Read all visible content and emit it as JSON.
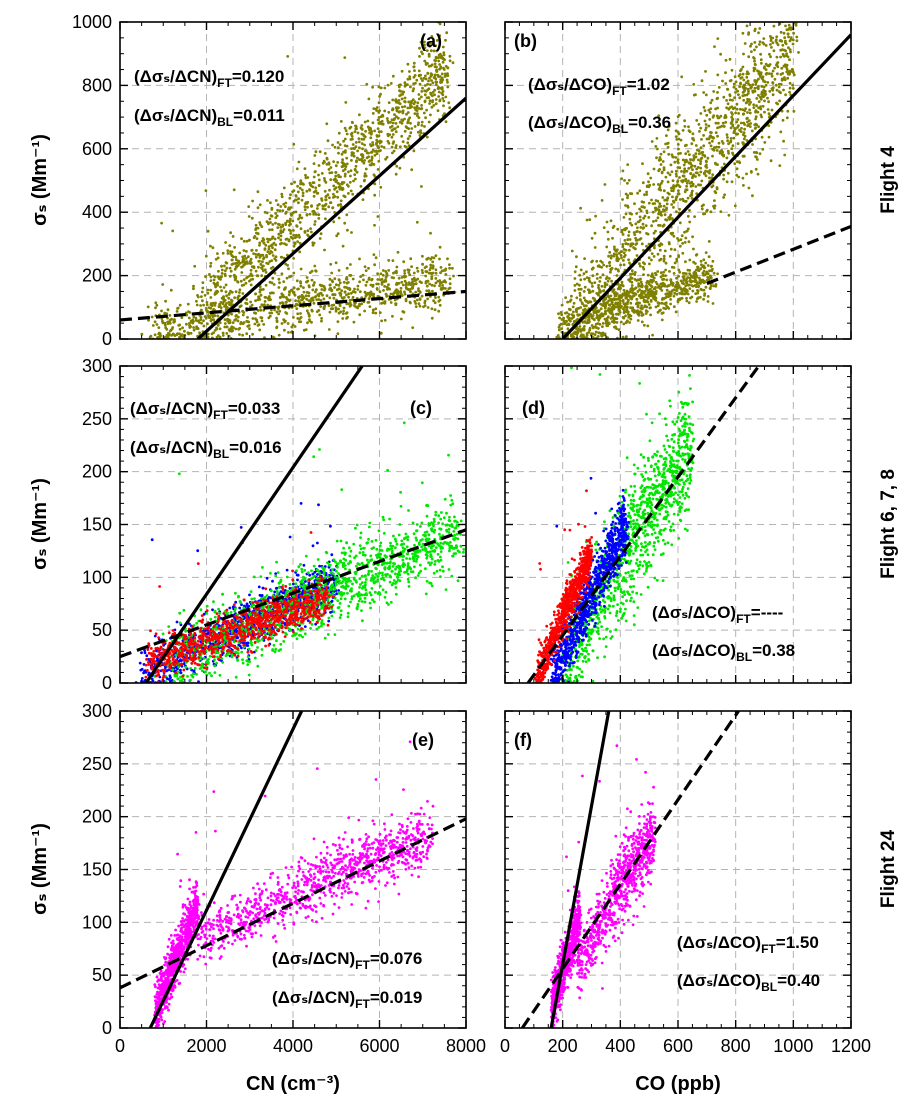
{
  "colors": {
    "flight4": "#808000",
    "flight6": "#ff0000",
    "flight7": "#0000ff",
    "flight8": "#00e600",
    "flight24": "#ff00ff",
    "fit_line": "#000000",
    "grid": "#b4b4b4"
  },
  "row_labels": [
    "Flight 4",
    "Flight 6, 7, 8",
    "Flight 24"
  ],
  "xlabels": {
    "cn": "CN (cm⁻³)",
    "co": "CO (ppb)"
  },
  "ylabel": "σₛ (Mm⁻¹)",
  "chart_data": [
    {
      "id": "a",
      "type": "scatter",
      "panel_label": "(a)",
      "xlim": [
        0,
        8000
      ],
      "ylim": [
        0,
        1000
      ],
      "grid": true,
      "xticks": [
        0,
        2000,
        4000,
        6000,
        8000
      ],
      "yticks": [
        0,
        200,
        400,
        600,
        800,
        1000
      ],
      "annotations": [
        {
          "text": "(Δσₛ/ΔCN)FT=0.120",
          "position": "top-left"
        },
        {
          "text": "(Δσₛ/ΔCN)BL=0.011",
          "position": "top-left"
        }
      ],
      "lines": [
        {
          "style": "solid",
          "slope": 0.12,
          "x": [
            1800,
            8000
          ],
          "y": [
            0,
            760
          ]
        },
        {
          "style": "dashed",
          "slope": 0.011,
          "x": [
            0,
            8000
          ],
          "y": [
            60,
            150
          ]
        }
      ],
      "series": [
        {
          "color_key": "flight4",
          "n": 2200,
          "clusters": [
            {
              "x": [
                1700,
                7600
              ],
              "y": [
                70,
                860
              ],
              "spread": 70,
              "weight": 0.55
            },
            {
              "x": [
                700,
                7600
              ],
              "y": [
                30,
                190
              ],
              "spread": 45,
              "weight": 0.45
            }
          ]
        }
      ]
    },
    {
      "id": "b",
      "type": "scatter",
      "panel_label": "(b)",
      "xlim": [
        0,
        1200
      ],
      "ylim": [
        0,
        1000
      ],
      "grid": true,
      "xticks": [
        0,
        200,
        400,
        600,
        800,
        1000,
        1200
      ],
      "yticks": [
        0,
        200,
        400,
        600,
        800,
        1000
      ],
      "annotations": [
        {
          "text": "(Δσₛ/ΔCO)FT=1.02",
          "position": "top-left"
        },
        {
          "text": "(Δσₛ/ΔCO)BL=0.36",
          "position": "top-left"
        }
      ],
      "lines": [
        {
          "style": "solid",
          "slope": 1.02,
          "x": [
            200,
            1200
          ],
          "y": [
            0,
            960
          ]
        },
        {
          "style": "dashed",
          "slope": 0.36,
          "x": [
            700,
            1200
          ],
          "y": [
            175,
            355
          ]
        }
      ],
      "series": [
        {
          "color_key": "flight4",
          "n": 2200,
          "clusters": [
            {
              "x": [
                230,
                1000
              ],
              "y": [
                40,
                920
              ],
              "spread": 110,
              "weight": 0.65
            },
            {
              "x": [
                180,
                720
              ],
              "y": [
                40,
                200
              ],
              "spread": 35,
              "weight": 0.35
            }
          ]
        }
      ]
    },
    {
      "id": "c",
      "type": "scatter",
      "panel_label": "(c)",
      "xlim": [
        0,
        8000
      ],
      "ylim": [
        0,
        300
      ],
      "grid": true,
      "xticks": [
        0,
        2000,
        4000,
        6000,
        8000
      ],
      "yticks": [
        0,
        50,
        100,
        150,
        200,
        250,
        300
      ],
      "annotations": [
        {
          "text": "(Δσₛ/ΔCN)FT=0.033",
          "position": "top-left"
        },
        {
          "text": "(Δσₛ/ΔCN)BL=0.016",
          "position": "top-left"
        }
      ],
      "lines": [
        {
          "style": "solid",
          "slope": 0.033,
          "x": [
            600,
            5600
          ],
          "y": [
            0,
            300
          ]
        },
        {
          "style": "dashed",
          "slope": 0.016,
          "x": [
            0,
            8000
          ],
          "y": [
            25,
            145
          ]
        }
      ],
      "series": [
        {
          "color_key": "flight7",
          "n": 1100,
          "clusters": [
            {
              "x": [
                500,
                5000
              ],
              "y": [
                10,
                95
              ],
              "spread": 12,
              "weight": 1
            }
          ]
        },
        {
          "color_key": "flight8",
          "n": 1400,
          "clusters": [
            {
              "x": [
                1000,
                7800
              ],
              "y": [
                20,
                140
              ],
              "spread": 17,
              "weight": 1
            }
          ]
        },
        {
          "color_key": "flight6",
          "n": 900,
          "clusters": [
            {
              "x": [
                600,
                4800
              ],
              "y": [
                20,
                80
              ],
              "spread": 10,
              "weight": 1
            }
          ]
        }
      ]
    },
    {
      "id": "d",
      "type": "scatter",
      "panel_label": "(d)",
      "xlim": [
        0,
        1200
      ],
      "ylim": [
        0,
        300
      ],
      "grid": true,
      "xticks": [
        0,
        200,
        400,
        600,
        800,
        1000,
        1200
      ],
      "yticks": [
        0,
        50,
        100,
        150,
        200,
        250,
        300
      ],
      "annotations": [
        {
          "text": "(Δσₛ/ΔCO)FT=----",
          "position": "bottom-right"
        },
        {
          "text": "(Δσₛ/ΔCO)BL=0.38",
          "position": "bottom-right"
        }
      ],
      "lines": [
        {
          "style": "dashed",
          "slope": 0.38,
          "x": [
            80,
            880
          ],
          "y": [
            0,
            300
          ]
        }
      ],
      "series": [
        {
          "color_key": "flight8",
          "n": 1200,
          "clusters": [
            {
              "x": [
                200,
                650
              ],
              "y": [
                20,
                230
              ],
              "spread": 28,
              "weight": 1
            }
          ]
        },
        {
          "color_key": "flight7",
          "n": 900,
          "clusters": [
            {
              "x": [
                160,
                420
              ],
              "y": [
                5,
                150
              ],
              "spread": 14,
              "weight": 1
            }
          ]
        },
        {
          "color_key": "flight6",
          "n": 800,
          "clusters": [
            {
              "x": [
                110,
                300
              ],
              "y": [
                5,
                125
              ],
              "spread": 10,
              "weight": 1
            }
          ]
        }
      ]
    },
    {
      "id": "e",
      "type": "scatter",
      "panel_label": "(e)",
      "xlim": [
        0,
        8000
      ],
      "ylim": [
        0,
        300
      ],
      "grid": true,
      "xticks": [
        0,
        2000,
        4000,
        6000,
        8000
      ],
      "yticks": [
        0,
        50,
        100,
        150,
        200,
        250,
        300
      ],
      "annotations": [
        {
          "text": "(Δσₛ/ΔCN)FT=0.076",
          "position": "bottom-right"
        },
        {
          "text": "(Δσₛ/ΔCN)FT=0.019",
          "position": "bottom-right"
        }
      ],
      "lines": [
        {
          "style": "solid",
          "slope": 0.076,
          "x": [
            700,
            4200
          ],
          "y": [
            0,
            300
          ]
        },
        {
          "style": "dashed",
          "slope": 0.019,
          "x": [
            0,
            8000
          ],
          "y": [
            38,
            198
          ]
        }
      ],
      "series": [
        {
          "color_key": "flight24",
          "n": 1800,
          "clusters": [
            {
              "x": [
                800,
                1800
              ],
              "y": [
                15,
                115
              ],
              "spread": 12,
              "weight": 0.45
            },
            {
              "x": [
                1800,
                7200
              ],
              "y": [
                85,
                185
              ],
              "spread": 14,
              "weight": 0.55
            }
          ]
        }
      ]
    },
    {
      "id": "f",
      "type": "scatter",
      "panel_label": "(f)",
      "xlim": [
        0,
        1200
      ],
      "ylim": [
        0,
        300
      ],
      "grid": true,
      "xticks": [
        0,
        200,
        400,
        600,
        800,
        1000,
        1200
      ],
      "yticks": [
        0,
        50,
        100,
        150,
        200,
        250,
        300
      ],
      "annotations": [
        {
          "text": "(Δσₛ/ΔCO)FT=1.50",
          "position": "bottom-right"
        },
        {
          "text": "(Δσₛ/ΔCO)BL=0.40",
          "position": "bottom-right"
        }
      ],
      "lines": [
        {
          "style": "solid",
          "slope": 1.5,
          "x": [
            160,
            360
          ],
          "y": [
            0,
            300
          ]
        },
        {
          "style": "dashed",
          "slope": 0.4,
          "x": [
            60,
            810
          ],
          "y": [
            0,
            300
          ]
        }
      ],
      "series": [
        {
          "color_key": "flight24",
          "n": 1500,
          "clusters": [
            {
              "x": [
                160,
                260
              ],
              "y": [
                20,
                105
              ],
              "spread": 12,
              "weight": 0.5
            },
            {
              "x": [
                250,
                520
              ],
              "y": [
                60,
                190
              ],
              "spread": 18,
              "weight": 0.5
            }
          ]
        }
      ]
    }
  ]
}
